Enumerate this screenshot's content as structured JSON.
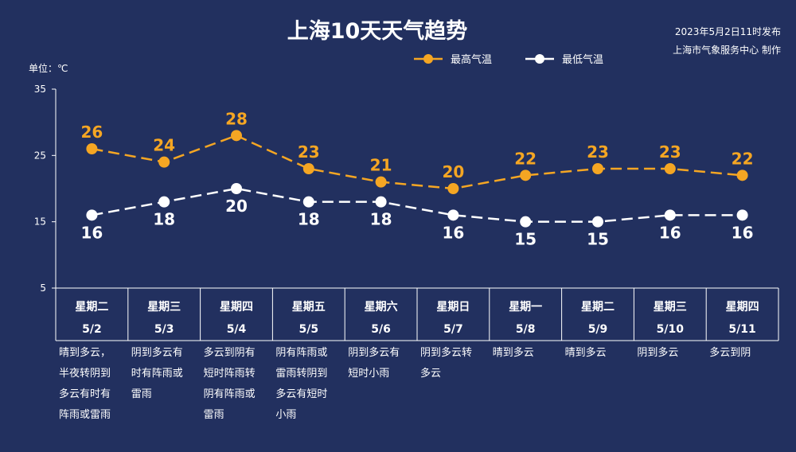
{
  "title": "上海10天天气趋势",
  "publish_time": "2023年5月2日11时发布",
  "producer": "上海市气象服务中心 制作",
  "unit_label": "单位：℃",
  "colors": {
    "background": "#22305f",
    "high": "#f5a623",
    "low": "#ffffff"
  },
  "chart_data": {
    "type": "line",
    "categories": [
      "5/2",
      "5/3",
      "5/4",
      "5/5",
      "5/6",
      "5/7",
      "5/8",
      "5/9",
      "5/10",
      "5/11"
    ],
    "weekdays": [
      "星期二",
      "星期三",
      "星期四",
      "星期五",
      "星期六",
      "星期日",
      "星期一",
      "星期二",
      "星期三",
      "星期四"
    ],
    "descriptions": [
      [
        "晴到多云，",
        "半夜转阴到",
        "多云有时有",
        "阵雨或雷雨"
      ],
      [
        "阴到多云有",
        "时有阵雨或",
        "雷雨"
      ],
      [
        "多云到阴有",
        "短时阵雨转",
        "阴有阵雨或",
        "雷雨"
      ],
      [
        "阴有阵雨或",
        "雷雨转阴到",
        "多云有短时",
        "小雨"
      ],
      [
        "阴到多云有",
        "短时小雨"
      ],
      [
        "阴到多云转",
        "多云"
      ],
      [
        "晴到多云"
      ],
      [
        "晴到多云"
      ],
      [
        "阴到多云"
      ],
      [
        "多云到阴"
      ]
    ],
    "series": [
      {
        "name": "最高气温",
        "values": [
          26,
          24,
          28,
          23,
          21,
          20,
          22,
          23,
          23,
          22
        ],
        "color": "#f5a623",
        "style": "dashed"
      },
      {
        "name": "最低气温",
        "values": [
          16,
          18,
          20,
          18,
          18,
          16,
          15,
          15,
          16,
          16
        ],
        "color": "#ffffff",
        "style": "dashed"
      }
    ],
    "ylim": [
      5,
      35
    ],
    "yticks": [
      5,
      15,
      25,
      35
    ],
    "legend_position": "top-right"
  }
}
